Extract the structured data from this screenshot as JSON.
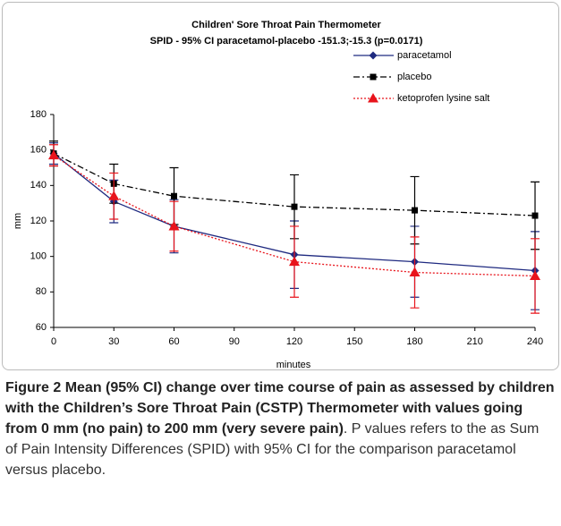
{
  "chart_data": {
    "type": "line",
    "title": "Children' Sore Throat Pain Thermometer",
    "subtitle": "SPID - 95% CI paracetamol-placebo -151.3;-15.3 (p=0.0171)",
    "xlabel": "minutes",
    "ylabel": "mm",
    "x": [
      0,
      30,
      60,
      120,
      180,
      240
    ],
    "xlim": [
      0,
      240
    ],
    "xticks": [
      0,
      30,
      60,
      90,
      120,
      150,
      180,
      210,
      240
    ],
    "ylim": [
      60,
      180
    ],
    "yticks": [
      60,
      80,
      100,
      120,
      140,
      160,
      180
    ],
    "grid": false,
    "legend": "upper right",
    "series": [
      {
        "name": "paracetamol",
        "color": "#1f2a80",
        "linestyle": "solid",
        "marker": "diamond",
        "values": [
          158,
          131,
          117,
          101,
          97,
          92
        ],
        "errors": [
          6,
          12,
          15,
          19,
          20,
          22
        ]
      },
      {
        "name": "placebo",
        "color": "#000000",
        "linestyle": "dashdot",
        "marker": "square",
        "values": [
          158,
          141,
          134,
          128,
          126,
          123
        ],
        "errors": [
          7,
          11,
          16,
          18,
          19,
          19
        ]
      },
      {
        "name": "ketoprofen lysine salt",
        "color": "#e8141c",
        "linestyle": "dotted",
        "marker": "triangle",
        "values": [
          157,
          134,
          117,
          97,
          91,
          89
        ],
        "errors": [
          6,
          13,
          14,
          20,
          20,
          21
        ]
      }
    ]
  },
  "caption": {
    "label": "Figure 2",
    "bold_text": "Mean (95% CI) change over time course of pain as assessed by children with the Children’s Sore Throat Pain (CSTP) Thermometer with values going from 0 mm (no pain) to 200 mm (very severe pain)",
    "text": ". P values refers to the as Sum of Pain Intensity Differences (SPID) with 95% CI for the comparison paracetamol versus placebo."
  }
}
